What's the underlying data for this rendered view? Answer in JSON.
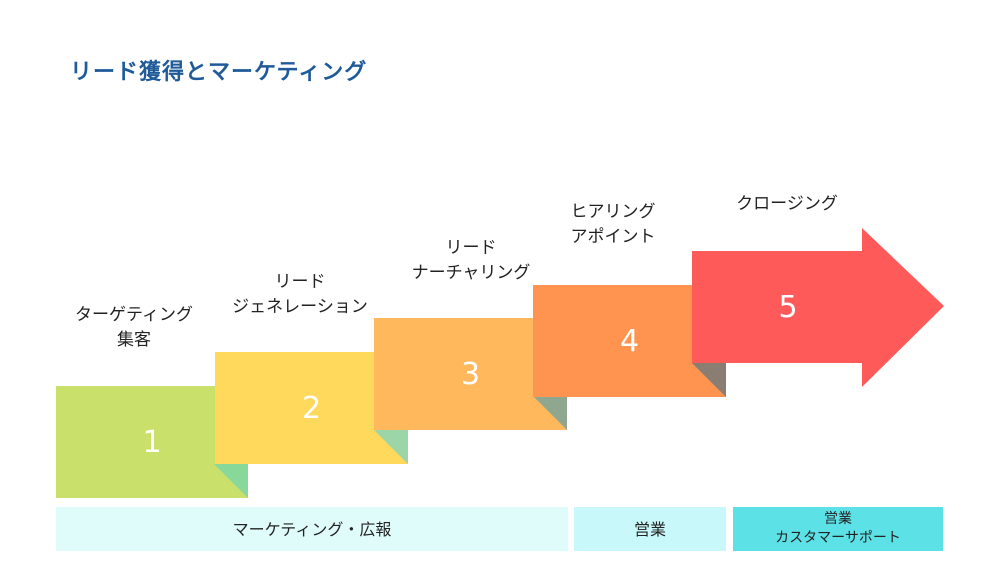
{
  "title": "リード獲得とマーケティング",
  "colors": {
    "title": "#1f5a99",
    "step1": "#c9e06b",
    "step2": "#ffd95c",
    "step3": "#ffb85c",
    "step4": "#ff9450",
    "step5": "#ff5a5a",
    "bar1": "#dffcfb",
    "bar2": "#c8f8f9",
    "bar3": "#5ce1e6"
  },
  "steps": [
    {
      "number": "1",
      "label_lines": [
        "ターゲティング",
        "集客"
      ]
    },
    {
      "number": "2",
      "label_lines": [
        "リード",
        "ジェネレーション"
      ]
    },
    {
      "number": "3",
      "label_lines": [
        "リード",
        "ナーチャリング"
      ]
    },
    {
      "number": "4",
      "label_lines": [
        "ヒアリング",
        "アポイント"
      ]
    },
    {
      "number": "5",
      "label_lines": [
        "クロージング"
      ]
    }
  ],
  "bars": [
    {
      "lines": [
        "マーケティング・広報"
      ]
    },
    {
      "lines": [
        "営業"
      ]
    },
    {
      "lines": [
        "営業",
        "カスタマーサポート"
      ]
    }
  ]
}
